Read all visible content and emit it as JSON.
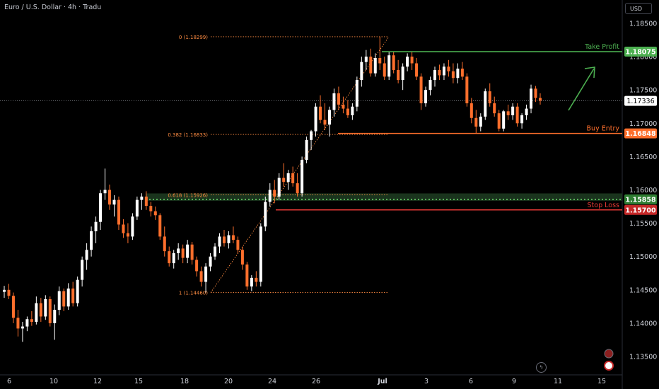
{
  "header": {
    "symbol_title": "Euro / U.S. Dollar · 4h · Tradu",
    "currency_button": "USD"
  },
  "colors": {
    "background": "#000000",
    "up_candle": "#ffffff",
    "down_candle": "#ff6f2c",
    "take_profit": "#4caf50",
    "buy_entry": "#ff6f2c",
    "stop_loss": "#e53935",
    "fib_line": "#ff8c42",
    "zone_fill": "#1e3d22",
    "zone_dots": "#6fe06f",
    "current_price_badge": "#ffffff",
    "axis_text": "#d1d4dc"
  },
  "icons": [
    "lightning-icon",
    "alert-clock-icon",
    "snapshot-icon"
  ],
  "chart_data": {
    "type": "candlestick",
    "title": "Euro / U.S. Dollar · 4h · Tradu",
    "x_tick_labels": [
      "6",
      "10",
      "12",
      "15",
      "18",
      "20",
      "24",
      "26",
      "Jul",
      "3",
      "6",
      "9",
      "11",
      "15"
    ],
    "y_tick_labels": [
      "1.18500",
      "1.18000",
      "1.17500",
      "1.17000",
      "1.16500",
      "1.16000",
      "1.15500",
      "1.15000",
      "1.14500",
      "1.14000",
      "1.13500"
    ],
    "ylim": [
      1.133,
      1.188
    ],
    "grid": false,
    "price_badges": [
      {
        "label": "1.18075",
        "value": 1.18075,
        "style": "take_profit"
      },
      {
        "label": "1.17336",
        "value": 1.17336,
        "style": "current_price"
      },
      {
        "label": "1.16848",
        "value": 1.16848,
        "style": "buy_entry"
      },
      {
        "label": "1.15858",
        "value": 1.15858,
        "style": "zone"
      },
      {
        "label": "1.15700",
        "value": 1.157,
        "style": "stop_loss"
      }
    ],
    "levels": [
      {
        "name": "Take Profit",
        "value": 1.18075,
        "style": "take_profit"
      },
      {
        "name": "Buy Entry",
        "value": 1.16848,
        "style": "buy_entry"
      },
      {
        "name": "Stop Loss",
        "value": 1.157,
        "style": "stop_loss"
      }
    ],
    "fibonacci": [
      {
        "label": "0 (1.18299)",
        "value": 1.18299
      },
      {
        "label": "0.382 (1.16833)",
        "value": 1.16833
      },
      {
        "label": "0.618 (1.15926)",
        "value": 1.15926
      },
      {
        "label": "1 (1.14460)",
        "value": 1.1446
      }
    ],
    "zone": {
      "top": 1.15926,
      "bottom": 1.15858
    },
    "current_price": 1.17336,
    "candles": [
      [
        1.1447,
        1.1456,
        1.1438,
        1.145
      ],
      [
        1.145,
        1.1459,
        1.1436,
        1.1441
      ],
      [
        1.1441,
        1.1446,
        1.14,
        1.1408
      ],
      [
        1.1408,
        1.142,
        1.138,
        1.1392
      ],
      [
        1.1392,
        1.1402,
        1.1372,
        1.1395
      ],
      [
        1.1395,
        1.141,
        1.1388,
        1.1406
      ],
      [
        1.1406,
        1.1418,
        1.1396,
        1.1402
      ],
      [
        1.1402,
        1.144,
        1.1398,
        1.143
      ],
      [
        1.143,
        1.1438,
        1.1402,
        1.141
      ],
      [
        1.141,
        1.1442,
        1.1405,
        1.1436
      ],
      [
        1.1436,
        1.144,
        1.1395,
        1.14
      ],
      [
        1.14,
        1.1428,
        1.1375,
        1.142
      ],
      [
        1.142,
        1.1455,
        1.1412,
        1.1448
      ],
      [
        1.1448,
        1.1452,
        1.1418,
        1.1425
      ],
      [
        1.1425,
        1.146,
        1.142,
        1.1452
      ],
      [
        1.1452,
        1.1462,
        1.1425,
        1.143
      ],
      [
        1.143,
        1.147,
        1.1425,
        1.1465
      ],
      [
        1.1465,
        1.15,
        1.1455,
        1.1495
      ],
      [
        1.1495,
        1.152,
        1.148,
        1.151
      ],
      [
        1.151,
        1.1545,
        1.15,
        1.1538
      ],
      [
        1.1538,
        1.156,
        1.152,
        1.1552
      ],
      [
        1.1552,
        1.16,
        1.154,
        1.1595
      ],
      [
        1.1595,
        1.1632,
        1.1585,
        1.16
      ],
      [
        1.16,
        1.1608,
        1.157,
        1.1578
      ],
      [
        1.1578,
        1.1592,
        1.156,
        1.1585
      ],
      [
        1.1585,
        1.159,
        1.154,
        1.1548
      ],
      [
        1.1548,
        1.1556,
        1.1528,
        1.1535
      ],
      [
        1.1535,
        1.155,
        1.152,
        1.153
      ],
      [
        1.153,
        1.1565,
        1.1525,
        1.156
      ],
      [
        1.156,
        1.159,
        1.1555,
        1.1585
      ],
      [
        1.1585,
        1.1595,
        1.157,
        1.159
      ],
      [
        1.159,
        1.1598,
        1.157,
        1.1576
      ],
      [
        1.1576,
        1.1582,
        1.156,
        1.1568
      ],
      [
        1.1568,
        1.1575,
        1.1555,
        1.1562
      ],
      [
        1.1562,
        1.1565,
        1.1525,
        1.153
      ],
      [
        1.153,
        1.1545,
        1.15,
        1.1508
      ],
      [
        1.1508,
        1.1515,
        1.1485,
        1.149
      ],
      [
        1.149,
        1.151,
        1.1482,
        1.1505
      ],
      [
        1.1505,
        1.152,
        1.1495,
        1.1512
      ],
      [
        1.1512,
        1.1518,
        1.149,
        1.1498
      ],
      [
        1.1498,
        1.1525,
        1.149,
        1.1518
      ],
      [
        1.1518,
        1.1522,
        1.1488,
        1.1495
      ],
      [
        1.1495,
        1.15,
        1.147,
        1.1478
      ],
      [
        1.1478,
        1.1485,
        1.1455,
        1.1462
      ],
      [
        1.1462,
        1.149,
        1.1446,
        1.1485
      ],
      [
        1.1485,
        1.1505,
        1.1478,
        1.15
      ],
      [
        1.15,
        1.152,
        1.1495,
        1.1515
      ],
      [
        1.1515,
        1.1535,
        1.1505,
        1.153
      ],
      [
        1.153,
        1.154,
        1.1515,
        1.152
      ],
      [
        1.152,
        1.1538,
        1.1512,
        1.1532
      ],
      [
        1.1532,
        1.1545,
        1.152,
        1.1525
      ],
      [
        1.1525,
        1.153,
        1.1505,
        1.151
      ],
      [
        1.151,
        1.1515,
        1.148,
        1.1488
      ],
      [
        1.1488,
        1.1492,
        1.145,
        1.1455
      ],
      [
        1.1455,
        1.1472,
        1.1448,
        1.1468
      ],
      [
        1.1468,
        1.1478,
        1.1455,
        1.1462
      ],
      [
        1.1462,
        1.155,
        1.1455,
        1.1545
      ],
      [
        1.1545,
        1.159,
        1.1538,
        1.1582
      ],
      [
        1.1582,
        1.161,
        1.1575,
        1.16
      ],
      [
        1.16,
        1.1615,
        1.158,
        1.159
      ],
      [
        1.159,
        1.1625,
        1.1585,
        1.1618
      ],
      [
        1.1618,
        1.164,
        1.1605,
        1.1612
      ],
      [
        1.1612,
        1.163,
        1.16,
        1.1625
      ],
      [
        1.1625,
        1.1635,
        1.1605,
        1.161
      ],
      [
        1.161,
        1.1625,
        1.159,
        1.1595
      ],
      [
        1.1595,
        1.165,
        1.159,
        1.1645
      ],
      [
        1.1645,
        1.168,
        1.164,
        1.1675
      ],
      [
        1.1675,
        1.169,
        1.166,
        1.1688
      ],
      [
        1.1688,
        1.173,
        1.168,
        1.1725
      ],
      [
        1.1725,
        1.1742,
        1.17,
        1.1705
      ],
      [
        1.1705,
        1.173,
        1.169,
        1.1698
      ],
      [
        1.1698,
        1.1725,
        1.168,
        1.172
      ],
      [
        1.172,
        1.1752,
        1.171,
        1.1745
      ],
      [
        1.1745,
        1.1755,
        1.172,
        1.1728
      ],
      [
        1.1728,
        1.174,
        1.1715,
        1.1722
      ],
      [
        1.1722,
        1.1735,
        1.1708,
        1.1712
      ],
      [
        1.1712,
        1.173,
        1.1705,
        1.1725
      ],
      [
        1.1725,
        1.177,
        1.1718,
        1.1765
      ],
      [
        1.1765,
        1.18,
        1.1755,
        1.1792
      ],
      [
        1.1792,
        1.181,
        1.178,
        1.18
      ],
      [
        1.18,
        1.1812,
        1.177,
        1.1775
      ],
      [
        1.1775,
        1.1805,
        1.177,
        1.1798
      ],
      [
        1.1798,
        1.183,
        1.178,
        1.179
      ],
      [
        1.179,
        1.18,
        1.1765,
        1.177
      ],
      [
        1.177,
        1.1808,
        1.1765,
        1.1802
      ],
      [
        1.1802,
        1.1808,
        1.1775,
        1.178
      ],
      [
        1.178,
        1.1795,
        1.176,
        1.1765
      ],
      [
        1.1765,
        1.179,
        1.175,
        1.1785
      ],
      [
        1.1785,
        1.1805,
        1.1778,
        1.18
      ],
      [
        1.18,
        1.1808,
        1.178,
        1.179
      ],
      [
        1.179,
        1.1798,
        1.1765,
        1.177
      ],
      [
        1.177,
        1.1775,
        1.172,
        1.173
      ],
      [
        1.173,
        1.1755,
        1.1725,
        1.175
      ],
      [
        1.175,
        1.177,
        1.1742,
        1.1765
      ],
      [
        1.1765,
        1.1785,
        1.1755,
        1.178
      ],
      [
        1.178,
        1.1788,
        1.1765,
        1.1772
      ],
      [
        1.1772,
        1.179,
        1.1765,
        1.1785
      ],
      [
        1.1785,
        1.1795,
        1.177,
        1.1778
      ],
      [
        1.1778,
        1.179,
        1.176,
        1.1768
      ],
      [
        1.1768,
        1.179,
        1.176,
        1.1782
      ],
      [
        1.1782,
        1.1792,
        1.1765,
        1.177
      ],
      [
        1.177,
        1.1775,
        1.1725,
        1.173
      ],
      [
        1.173,
        1.1738,
        1.17,
        1.1708
      ],
      [
        1.1708,
        1.172,
        1.1685,
        1.1695
      ],
      [
        1.1695,
        1.1715,
        1.1688,
        1.171
      ],
      [
        1.171,
        1.1752,
        1.1705,
        1.1748
      ],
      [
        1.1748,
        1.176,
        1.1725,
        1.173
      ],
      [
        1.173,
        1.174,
        1.171,
        1.1715
      ],
      [
        1.1715,
        1.172,
        1.1688,
        1.1692
      ],
      [
        1.1692,
        1.172,
        1.1688,
        1.1718
      ],
      [
        1.1718,
        1.1728,
        1.1705,
        1.1712
      ],
      [
        1.1712,
        1.173,
        1.1705,
        1.1725
      ],
      [
        1.1725,
        1.173,
        1.1695,
        1.17
      ],
      [
        1.17,
        1.1715,
        1.1692,
        1.1712
      ],
      [
        1.1712,
        1.1728,
        1.1705,
        1.1722
      ],
      [
        1.1722,
        1.1758,
        1.1715,
        1.1752
      ],
      [
        1.1752,
        1.1756,
        1.1732,
        1.1738
      ],
      [
        1.1738,
        1.1745,
        1.1728,
        1.1734
      ]
    ]
  }
}
